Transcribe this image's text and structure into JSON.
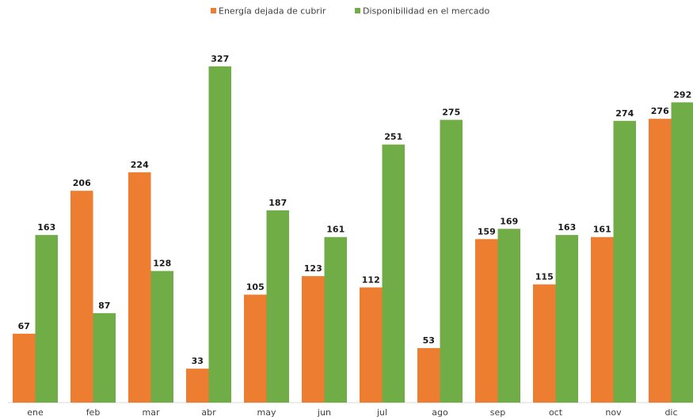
{
  "chart_data": {
    "type": "bar",
    "categories": [
      "ene",
      "feb",
      "mar",
      "abr",
      "may",
      "jun",
      "jul",
      "ago",
      "sep",
      "oct",
      "nov",
      "dic"
    ],
    "series": [
      {
        "name": "Energía dejada de cubrir",
        "color": "#ED7D31",
        "values": [
          67,
          206,
          224,
          33,
          105,
          123,
          112,
          53,
          159,
          115,
          161,
          276
        ]
      },
      {
        "name": "Disponibilidad en el mercado",
        "color": "#70AD47",
        "values": [
          163,
          87,
          128,
          327,
          187,
          161,
          251,
          275,
          169,
          163,
          274,
          292
        ]
      }
    ],
    "ylim": [
      0,
      360
    ],
    "legend_position": "top-center",
    "grid": false
  }
}
